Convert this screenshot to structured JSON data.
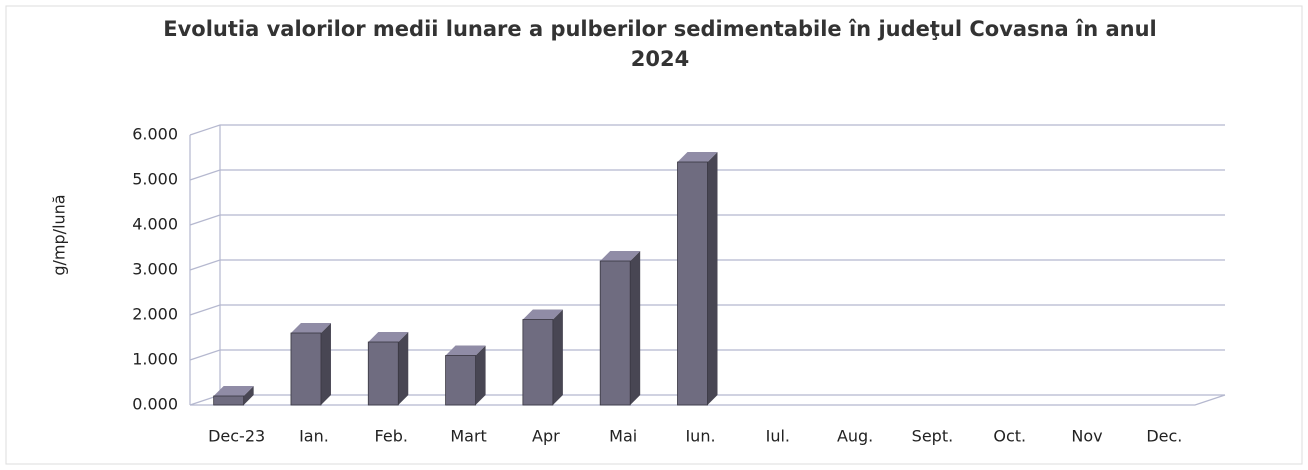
{
  "chart_data": {
    "type": "bar3d",
    "title": "Evolutia valorilor medii lunare a pulberilor sedimentabile în judeţul Covasna  în anul 2024",
    "y_label": "g/mp/lună",
    "categories": [
      "Dec-23",
      "Ian.",
      "Feb.",
      "Mart",
      "Apr",
      "Mai",
      "Iun.",
      "Iul.",
      "Aug.",
      "Sept.",
      "Oct.",
      "Nov",
      "Dec."
    ],
    "values": [
      0.2,
      1.6,
      1.4,
      1.1,
      1.9,
      3.2,
      5.4,
      null,
      null,
      null,
      null,
      null,
      null
    ],
    "color": "#6f6c80",
    "ylim": [
      0,
      6
    ],
    "yticks": [
      {
        "value": 0,
        "label": "0.000"
      },
      {
        "value": 1,
        "label": "1.000"
      },
      {
        "value": 2,
        "label": "2.000"
      },
      {
        "value": 3,
        "label": "3.000"
      },
      {
        "value": 4,
        "label": "4.000"
      },
      {
        "value": 5,
        "label": "5.000"
      },
      {
        "value": 6,
        "label": "6.000"
      }
    ],
    "grid": true
  }
}
